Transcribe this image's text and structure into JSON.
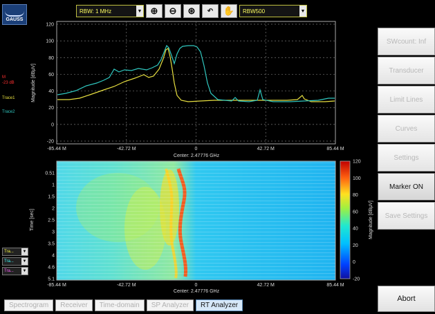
{
  "logo_text": "GAUSS",
  "toolbar": {
    "rbw_select": "RBW: 1 MHz",
    "rbw_preset": "RBW500",
    "icons": [
      "zoom-in-icon",
      "zoom-out-icon",
      "zoom-fit-icon",
      "zoom-back-icon",
      "pan-hand-icon"
    ]
  },
  "left_panel": {
    "marker_labels": [
      "M",
      "-23 dB"
    ],
    "trace1_label": "Trace1",
    "trace2_label": "Trace2",
    "trace_selectors": [
      {
        "label": "Tra...",
        "color": "#ffff40"
      },
      {
        "label": "Tra...",
        "color": "#40ffff"
      },
      {
        "label": "Tra...",
        "color": "#ff60ff"
      }
    ]
  },
  "spectrum": {
    "ylabel": "Magnitude [dBµV]",
    "yticks": [
      "120",
      "100",
      "80",
      "60",
      "40",
      "20",
      "0",
      "-20"
    ],
    "xticks": [
      "-85.44 M",
      "-42.72 M",
      "0",
      "42.72 M",
      "85.44 M"
    ],
    "center_label": "Center: 2.47776 GHz"
  },
  "spectrogram": {
    "ylabel": "Time [sec]",
    "yticks": [
      "0.51",
      "1",
      "1.5",
      "2",
      "2.5",
      "3",
      "3.5",
      "4",
      "4.6",
      "5.1"
    ],
    "xticks": [
      "-85.44 M",
      "-42.72 M",
      "0",
      "42.72 M",
      "85.44 M"
    ],
    "center_label": "Center: 2.47776 GHz",
    "colorbar_ticks": [
      "120",
      "100",
      "80",
      "60",
      "40",
      "20",
      "0",
      "-20"
    ],
    "colorbar_label": "Magnitude [dBµV]"
  },
  "sidebar": {
    "buttons": [
      {
        "label": "SWcount: Inf",
        "active": false
      },
      {
        "label": "Transducer",
        "active": false
      },
      {
        "label": "Limit Lines",
        "active": false
      },
      {
        "label": "Curves",
        "active": false
      },
      {
        "label": "Settings",
        "active": false
      },
      {
        "label": "Marker ON",
        "active": true
      },
      {
        "label": "Save Settings",
        "active": false
      }
    ],
    "abort_label": "Abort"
  },
  "tabs": [
    {
      "label": "Spectrogram",
      "active": false
    },
    {
      "label": "Receiver",
      "active": false
    },
    {
      "label": "Time-domain",
      "active": false
    },
    {
      "label": "SP Analyzer",
      "active": false
    },
    {
      "label": "RT Analyzer",
      "active": true
    }
  ],
  "colors": {
    "trace_yellow": "#e8e040",
    "trace_cyan": "#30c8c0",
    "spectrogram_base": "#20b8f0"
  }
}
